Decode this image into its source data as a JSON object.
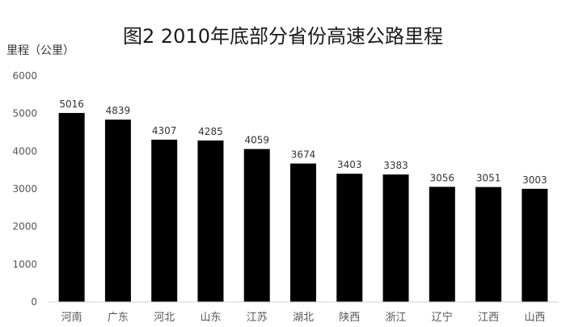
{
  "chart_data": {
    "type": "bar",
    "title": "图2 2010年底部分省份高速公路里程",
    "ylabel": "里程（公里）",
    "xlabel": "",
    "ylim": [
      0,
      6000
    ],
    "yticks": [
      0,
      1000,
      2000,
      3000,
      4000,
      5000,
      6000
    ],
    "grid": false,
    "bar_color": "#000000",
    "categories": [
      "河南",
      "广东",
      "河北",
      "山东",
      "江苏",
      "湖北",
      "陕西",
      "浙江",
      "辽宁",
      "江西",
      "山西"
    ],
    "values": [
      5016,
      4839,
      4307,
      4285,
      4059,
      3674,
      3403,
      3383,
      3056,
      3051,
      3003
    ]
  }
}
